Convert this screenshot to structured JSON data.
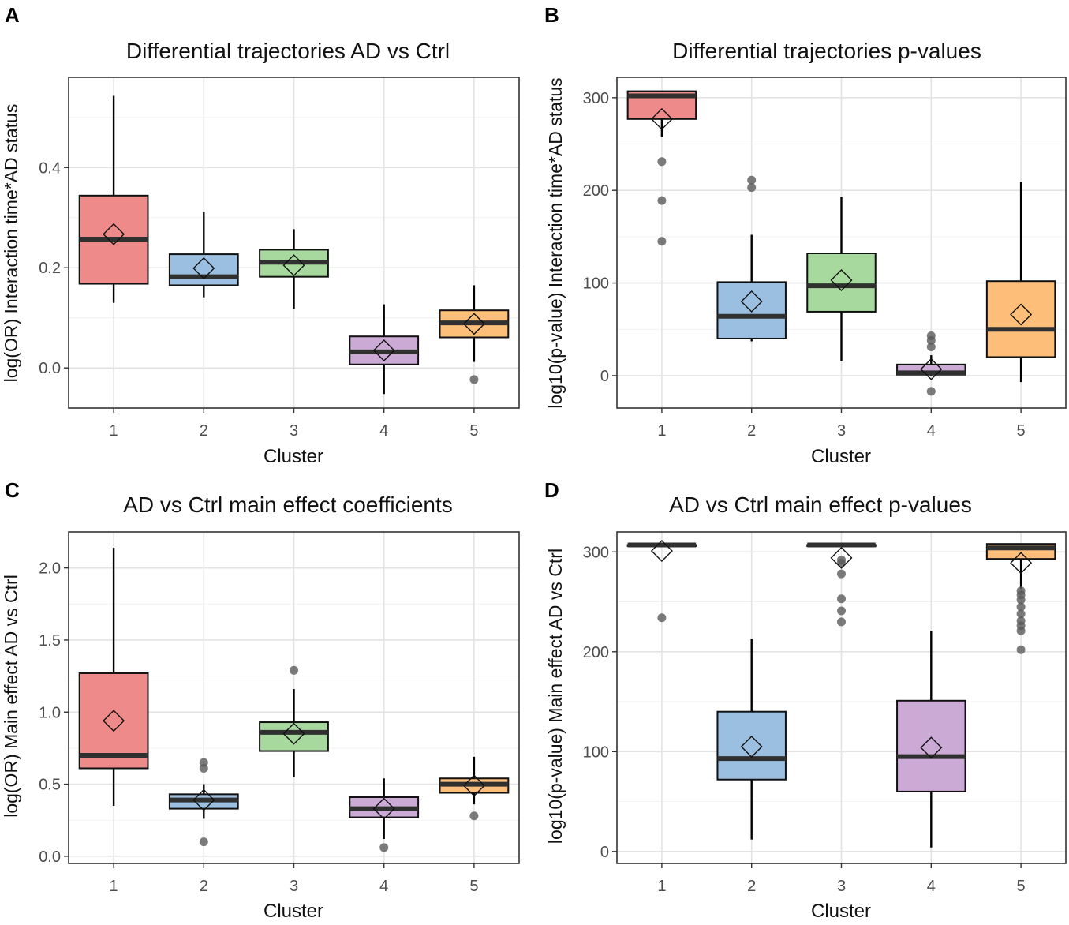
{
  "colors": {
    "1": "#ef8a8a",
    "2": "#9bbfe0",
    "3": "#a7d99e",
    "4": "#ccaad6",
    "5": "#fdbe7a"
  },
  "chart_data": [
    {
      "type": "box",
      "panel": "A",
      "title": "Differential trajectories AD vs Ctrl",
      "xlabel": "Cluster",
      "ylabel": "log(OR) Interaction time*AD status",
      "ylim": [
        -0.08,
        0.58
      ],
      "yticks": [
        0.0,
        0.2,
        0.4
      ],
      "ytick_labels": [
        "0.0",
        "0.2",
        "0.4"
      ],
      "categories": [
        "1",
        "2",
        "3",
        "4",
        "5"
      ],
      "boxes": [
        {
          "cluster": "1",
          "lower_whisker": 0.13,
          "q1": 0.168,
          "median": 0.257,
          "q3": 0.344,
          "upper_whisker": 0.543,
          "mean": 0.267,
          "outliers": []
        },
        {
          "cluster": "2",
          "lower_whisker": 0.141,
          "q1": 0.165,
          "median": 0.182,
          "q3": 0.227,
          "upper_whisker": 0.311,
          "mean": 0.199,
          "outliers": []
        },
        {
          "cluster": "3",
          "lower_whisker": 0.118,
          "q1": 0.182,
          "median": 0.211,
          "q3": 0.236,
          "upper_whisker": 0.277,
          "mean": 0.205,
          "outliers": []
        },
        {
          "cluster": "4",
          "lower_whisker": -0.052,
          "q1": 0.007,
          "median": 0.032,
          "q3": 0.063,
          "upper_whisker": 0.127,
          "mean": 0.035,
          "outliers": []
        },
        {
          "cluster": "5",
          "lower_whisker": 0.012,
          "q1": 0.061,
          "median": 0.09,
          "q3": 0.115,
          "upper_whisker": 0.165,
          "mean": 0.088,
          "outliers": [
            -0.023
          ]
        }
      ]
    },
    {
      "type": "box",
      "panel": "B",
      "title": "Differential trajectories p-values",
      "xlabel": "Cluster",
      "ylabel": "log10(p-value) Interaction time*AD status",
      "ylim": [
        -35,
        322
      ],
      "yticks": [
        0,
        100,
        200,
        300
      ],
      "ytick_labels": [
        "0",
        "100",
        "200",
        "300"
      ],
      "categories": [
        "1",
        "2",
        "3",
        "4",
        "5"
      ],
      "boxes": [
        {
          "cluster": "1",
          "lower_whisker": 258,
          "q1": 277,
          "median": 302,
          "q3": 307,
          "upper_whisker": 307,
          "mean": 277,
          "outliers": [
            231,
            189,
            145
          ]
        },
        {
          "cluster": "2",
          "lower_whisker": 37,
          "q1": 40,
          "median": 64,
          "q3": 101,
          "upper_whisker": 152,
          "mean": 80,
          "outliers": [
            211,
            203
          ]
        },
        {
          "cluster": "3",
          "lower_whisker": 16,
          "q1": 69,
          "median": 97,
          "q3": 132,
          "upper_whisker": 193,
          "mean": 103,
          "outliers": []
        },
        {
          "cluster": "4",
          "lower_whisker": 0,
          "q1": 1,
          "median": 3,
          "q3": 12,
          "upper_whisker": 22,
          "mean": 7,
          "outliers": [
            43,
            38,
            31,
            -17
          ]
        },
        {
          "cluster": "5",
          "lower_whisker": -7,
          "q1": 20,
          "median": 50,
          "q3": 102,
          "upper_whisker": 209,
          "mean": 66,
          "outliers": []
        }
      ]
    },
    {
      "type": "box",
      "panel": "C",
      "title": "AD vs Ctrl main effect coefficients",
      "xlabel": "Cluster",
      "ylabel": "log(OR) Main effect AD vs Ctrl",
      "ylim": [
        -0.05,
        2.25
      ],
      "yticks": [
        0.0,
        0.5,
        1.0,
        1.5,
        2.0
      ],
      "ytick_labels": [
        "0.0",
        "0.5",
        "1.0",
        "1.5",
        "2.0"
      ],
      "categories": [
        "1",
        "2",
        "3",
        "4",
        "5"
      ],
      "boxes": [
        {
          "cluster": "1",
          "lower_whisker": 0.35,
          "q1": 0.61,
          "median": 0.7,
          "q3": 1.27,
          "upper_whisker": 2.14,
          "mean": 0.94,
          "outliers": []
        },
        {
          "cluster": "2",
          "lower_whisker": 0.26,
          "q1": 0.33,
          "median": 0.39,
          "q3": 0.43,
          "upper_whisker": 0.5,
          "mean": 0.39,
          "outliers": [
            0.65,
            0.61,
            0.1
          ]
        },
        {
          "cluster": "3",
          "lower_whisker": 0.55,
          "q1": 0.73,
          "median": 0.86,
          "q3": 0.93,
          "upper_whisker": 1.16,
          "mean": 0.85,
          "outliers": [
            1.29
          ]
        },
        {
          "cluster": "4",
          "lower_whisker": 0.12,
          "q1": 0.27,
          "median": 0.33,
          "q3": 0.41,
          "upper_whisker": 0.54,
          "mean": 0.33,
          "outliers": [
            0.06
          ]
        },
        {
          "cluster": "5",
          "lower_whisker": 0.36,
          "q1": 0.44,
          "median": 0.5,
          "q3": 0.54,
          "upper_whisker": 0.69,
          "mean": 0.49,
          "outliers": [
            0.28
          ]
        }
      ]
    },
    {
      "type": "box",
      "panel": "D",
      "title": "AD vs Ctrl main effect p-values",
      "xlabel": "Cluster",
      "ylabel": "log10(p-value) Main effect AD vs Ctrl",
      "ylim": [
        -12,
        320
      ],
      "yticks": [
        0,
        100,
        200,
        300
      ],
      "ytick_labels": [
        "0",
        "100",
        "200",
        "300"
      ],
      "categories": [
        "1",
        "2",
        "3",
        "4",
        "5"
      ],
      "boxes": [
        {
          "cluster": "1",
          "lower_whisker": 307,
          "q1": 307,
          "median": 307,
          "q3": 307,
          "upper_whisker": 307,
          "mean": 301,
          "outliers": [
            234
          ]
        },
        {
          "cluster": "2",
          "lower_whisker": 12,
          "q1": 72,
          "median": 93,
          "q3": 140,
          "upper_whisker": 213,
          "mean": 105,
          "outliers": []
        },
        {
          "cluster": "3",
          "lower_whisker": 307,
          "q1": 307,
          "median": 307,
          "q3": 307,
          "upper_whisker": 307,
          "mean": 294,
          "outliers": [
            292,
            289,
            278,
            253,
            241,
            230
          ]
        },
        {
          "cluster": "4",
          "lower_whisker": 4,
          "q1": 60,
          "median": 95,
          "q3": 151,
          "upper_whisker": 221,
          "mean": 104,
          "outliers": []
        },
        {
          "cluster": "5",
          "lower_whisker": 263,
          "q1": 293,
          "median": 304,
          "q3": 308,
          "upper_whisker": 308,
          "mean": 289,
          "outliers": [
            261,
            257,
            252,
            245,
            238,
            231,
            226,
            221,
            202
          ]
        }
      ]
    }
  ]
}
